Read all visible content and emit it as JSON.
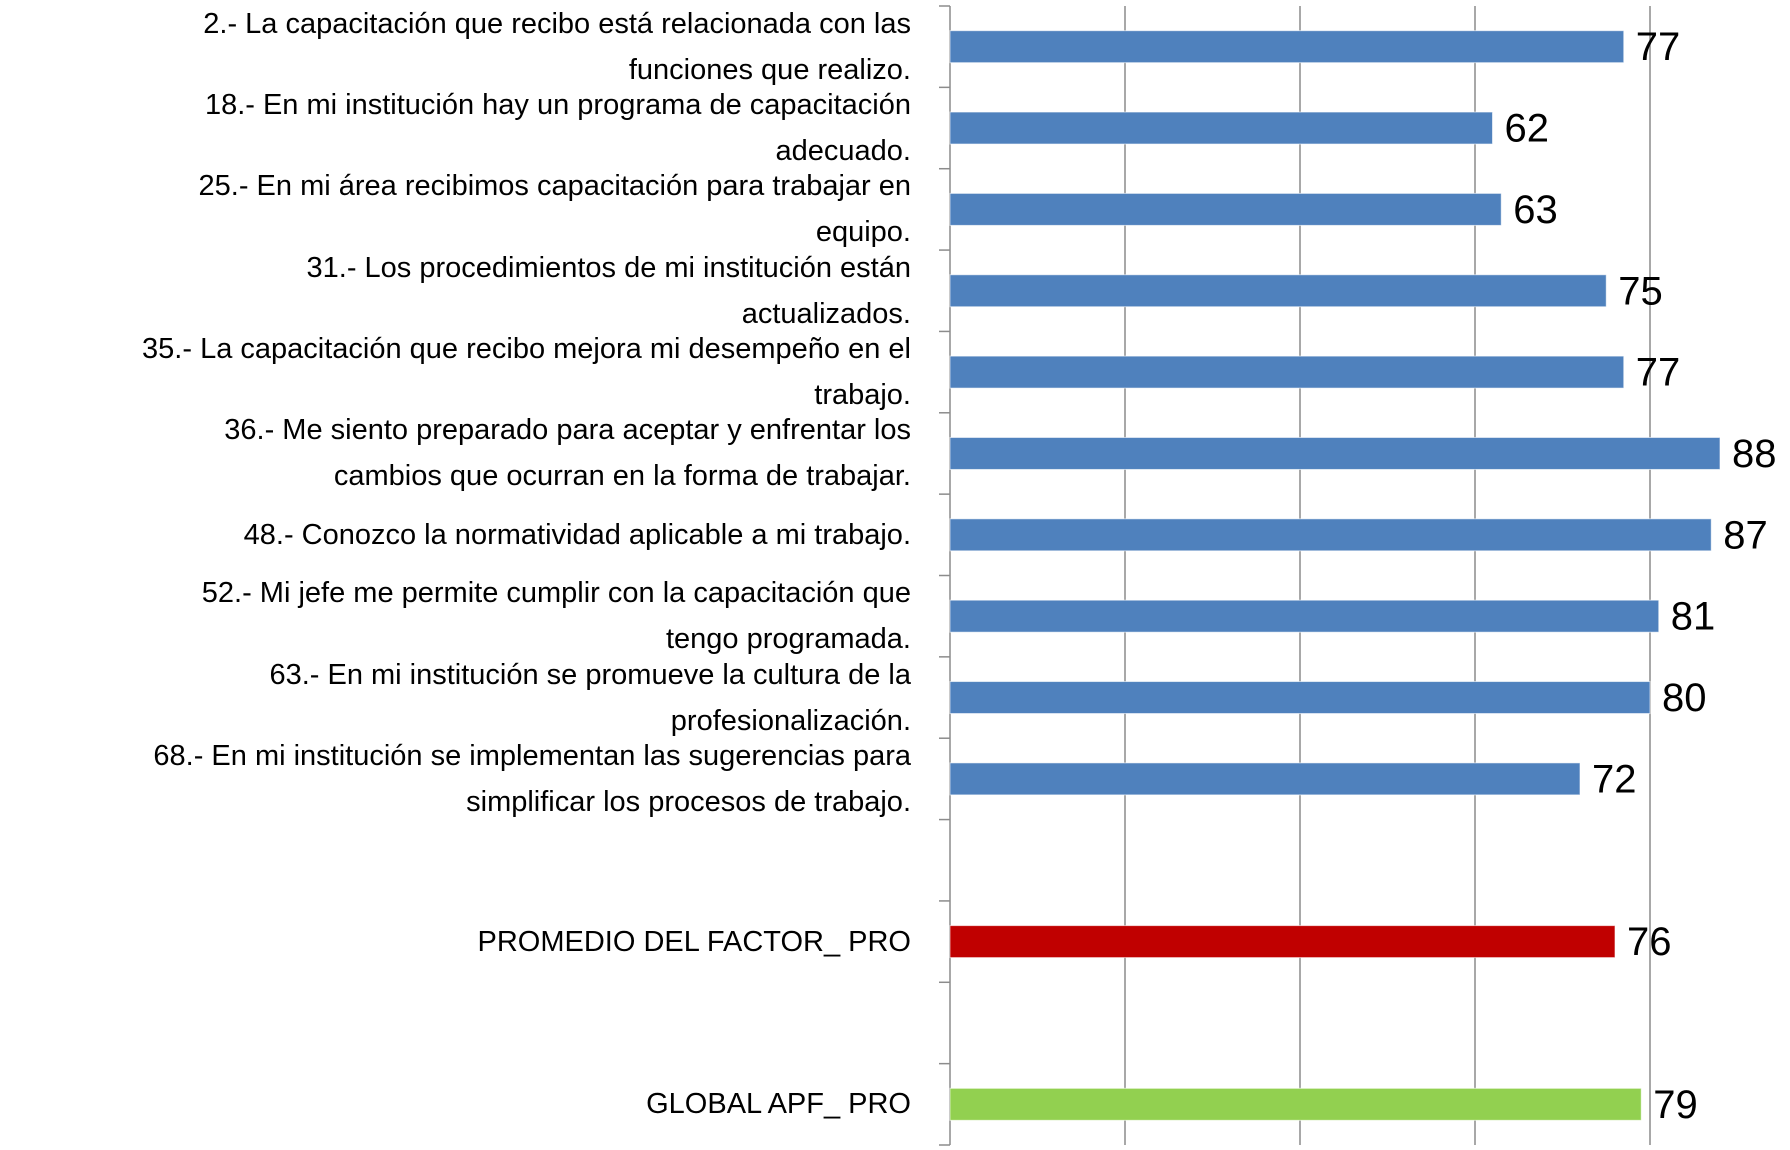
{
  "chart_data": {
    "type": "barh",
    "categories": [
      "2.- La capacitación que recibo está relacionada con las\nfunciones que realizo.",
      "18.- En mi institución hay un programa de capacitación\nadecuado.",
      "25.- En mi área recibimos capacitación para trabajar en\nequipo.",
      "31.- Los procedimientos de mi institución están\nactualizados.",
      "35.- La capacitación que recibo mejora mi desempeño en el\ntrabajo.",
      "36.- Me siento preparado para aceptar y enfrentar los\ncambios que ocurran en la forma de trabajar.",
      "48.- Conozco la normatividad aplicable a mi trabajo.",
      "52.- Mi jefe me permite cumplir con la capacitación que\ntengo programada.",
      "63.- En mi institución se promueve la cultura de la\nprofesionalización.",
      "68.- En mi institución se implementan las sugerencias para\nsimplificar los procesos de trabajo.",
      null,
      "PROMEDIO DEL FACTOR_ PRO",
      null,
      "GLOBAL APF_ PRO"
    ],
    "values": [
      77,
      62,
      63,
      75,
      77,
      88,
      87,
      81,
      80,
      72,
      null,
      76,
      null,
      79
    ],
    "colors": [
      "#4f81bd",
      "#4f81bd",
      "#4f81bd",
      "#4f81bd",
      "#4f81bd",
      "#4f81bd",
      "#4f81bd",
      "#4f81bd",
      "#4f81bd",
      "#4f81bd",
      null,
      "#c00000",
      null,
      "#92d050"
    ],
    "xlim": [
      0,
      96
    ],
    "xticks": [
      0,
      20,
      40,
      60,
      80
    ],
    "grid": true
  }
}
